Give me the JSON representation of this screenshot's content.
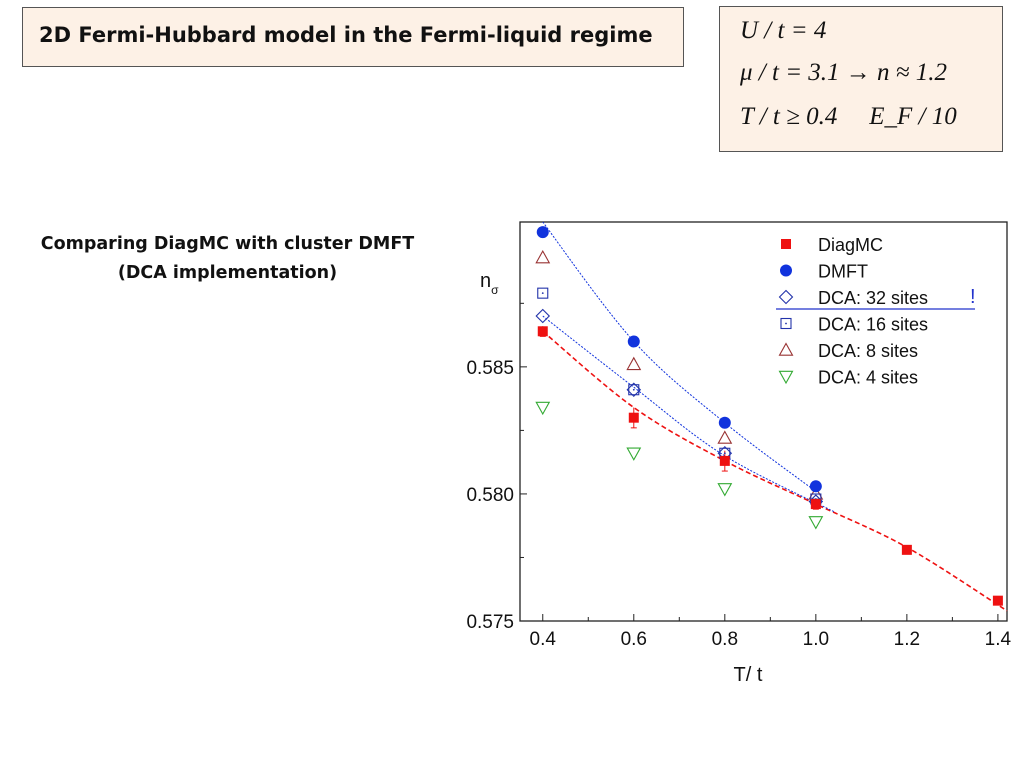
{
  "slide": {
    "title": "2D Fermi-Hubbard model in the Fermi-liquid regime",
    "params": [
      "U / t = 4",
      "μ / t = 3.1 → n ≈ 1.2",
      "T / t ≥ 0.4 ⃞ E_F / 10"
    ],
    "subtitle_line1": "Comparing DiagMC with cluster DMFT",
    "subtitle_line2": "(DCA implementation)"
  },
  "chart_data": {
    "type": "scatter",
    "xlabel": "T/ t",
    "ylabel": "n",
    "ylabel_sub": "σ",
    "xlim": [
      0.35,
      1.42
    ],
    "ylim": [
      0.575,
      0.5907
    ],
    "x_ticks": [
      0.4,
      0.6,
      0.8,
      1.0,
      1.2,
      1.4
    ],
    "x_tick_labels": [
      "0.4",
      "0.6",
      "0.8",
      "1.0",
      "1.2",
      "1.4"
    ],
    "y_ticks": [
      0.575,
      0.58,
      0.585
    ],
    "y_tick_labels": [
      "0.575",
      "0.580",
      "0.585"
    ],
    "legend_mark": "!",
    "series": [
      {
        "name": "DiagMC",
        "marker": "filled-square",
        "color": "#ee1111",
        "x": [
          0.4,
          0.6,
          0.8,
          1.0,
          1.2,
          1.4
        ],
        "y": [
          0.5864,
          0.583,
          0.5813,
          0.5796,
          0.5778,
          0.5758
        ],
        "err": [
          0.0002,
          0.0004,
          0.0004,
          0.0002,
          0.0001,
          0.0001
        ]
      },
      {
        "name": "DMFT",
        "marker": "filled-circle",
        "color": "#1133dd",
        "x": [
          0.4,
          0.6,
          0.8,
          1.0
        ],
        "y": [
          0.5903,
          0.586,
          0.5828,
          0.5803
        ]
      },
      {
        "name": "DCA: 32 sites",
        "marker": "open-diamond",
        "color": "#2233aa",
        "x": [
          0.4,
          0.6,
          0.8,
          1.0
        ],
        "y": [
          0.587,
          0.5841,
          0.5816,
          0.5797
        ]
      },
      {
        "name": "DCA: 16 sites",
        "marker": "open-square",
        "color": "#2233aa",
        "x": [
          0.4,
          0.6,
          0.8,
          1.0
        ],
        "y": [
          0.5879,
          0.5841,
          0.5816,
          0.5798
        ]
      },
      {
        "name": "DCA: 8 sites",
        "marker": "open-triangle-up",
        "color": "#993333",
        "x": [
          0.4,
          0.6,
          0.8,
          1.0
        ],
        "y": [
          0.5893,
          0.5851,
          0.5822,
          0.58
        ]
      },
      {
        "name": "DCA: 4 sites",
        "marker": "open-triangle-down",
        "color": "#33aa33",
        "x": [
          0.4,
          0.6,
          0.8,
          1.0
        ],
        "y": [
          0.5834,
          0.5816,
          0.5802,
          0.5789
        ]
      }
    ],
    "fits": [
      {
        "color": "#ee1111",
        "style": "dashed",
        "x": [
          0.4,
          0.6,
          0.8,
          1.0,
          1.2,
          1.42
        ],
        "y": [
          0.5864,
          0.5834,
          0.5813,
          0.5796,
          0.5779,
          0.5754
        ]
      },
      {
        "color": "#1133dd",
        "style": "dotted",
        "x": [
          0.4,
          0.6,
          0.8,
          1.0
        ],
        "y": [
          0.5907,
          0.586,
          0.5828,
          0.5801
        ]
      },
      {
        "color": "#1133dd",
        "style": "dotted",
        "x": [
          0.4,
          0.6,
          0.8,
          1.04
        ],
        "y": [
          0.587,
          0.5842,
          0.5815,
          0.5793
        ]
      }
    ]
  }
}
